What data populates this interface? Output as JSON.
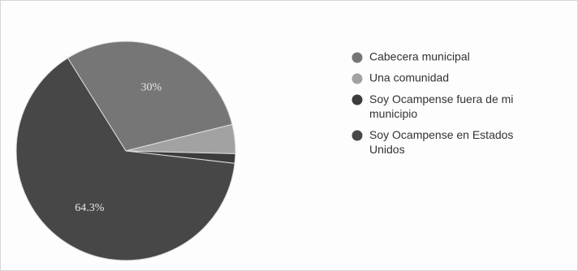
{
  "chart_data": {
    "type": "pie",
    "categories": [
      "Cabecera municipal",
      "Una comunidad",
      "Soy Ocampense fuera de mi municipio",
      "Soy Ocampense en Estados Unidos"
    ],
    "values": [
      30,
      4.3,
      1.4,
      64.3
    ],
    "value_labels": [
      "30%",
      null,
      null,
      "64.3%"
    ],
    "colors": [
      "#767676",
      "#a2a2a2",
      "#3c3c3c",
      "#474747"
    ]
  }
}
